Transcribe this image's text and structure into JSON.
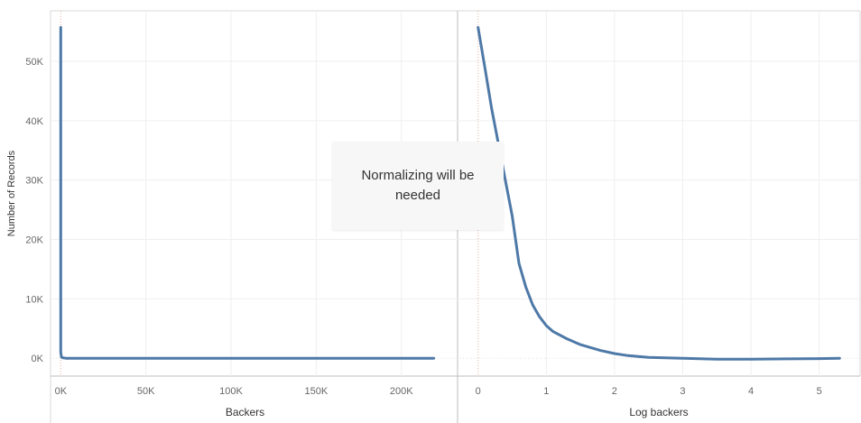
{
  "chart_data": [
    {
      "type": "line",
      "xlabel": "Backers",
      "ylabel": "Number of Records",
      "x_tick_labels": [
        "0K",
        "50K",
        "100K",
        "150K",
        "200K"
      ],
      "x_ticks": [
        0,
        50000,
        100000,
        150000,
        200000
      ],
      "xlim": [
        -6000,
        233000
      ],
      "y_tick_labels": [
        "0K",
        "10K",
        "20K",
        "30K",
        "40K",
        "50K"
      ],
      "y_ticks": [
        0,
        10000,
        20000,
        30000,
        40000,
        50000
      ],
      "ylim": [
        -3000,
        58500
      ],
      "grid": true,
      "series": [
        {
          "color": "#4e79a7",
          "x": [
            0,
            0,
            400,
            1000,
            3000,
            10000,
            50000,
            100000,
            150000,
            219000
          ],
          "y": [
            55700,
            1000,
            200,
            100,
            0,
            0,
            0,
            0,
            0,
            0
          ]
        }
      ]
    },
    {
      "type": "line",
      "xlabel": "Log backers",
      "ylabel": "Number of Records",
      "x_tick_labels": [
        "0",
        "1",
        "2",
        "3",
        "4",
        "5"
      ],
      "x_ticks": [
        0,
        1,
        2,
        3,
        4,
        5
      ],
      "xlim": [
        -0.3,
        5.6
      ],
      "y_tick_labels": [
        "0K",
        "10K",
        "20K",
        "30K",
        "40K",
        "50K"
      ],
      "y_ticks": [
        0,
        10000,
        20000,
        30000,
        40000,
        50000
      ],
      "ylim": [
        -3000,
        58500
      ],
      "grid": true,
      "series": [
        {
          "color": "#4e79a7",
          "x": [
            0,
            0.1,
            0.2,
            0.3,
            0.4,
            0.5,
            0.6,
            0.7,
            0.8,
            0.9,
            1.0,
            1.1,
            1.3,
            1.5,
            1.8,
            2.0,
            2.2,
            2.5,
            3.0,
            3.5,
            4.0,
            4.5,
            5.0,
            5.3
          ],
          "y": [
            55700,
            49000,
            42000,
            36000,
            30000,
            24000,
            16000,
            12000,
            9000,
            7000,
            5500,
            4500,
            3300,
            2300,
            1300,
            800,
            450,
            150,
            0,
            -150,
            -150,
            -100,
            -50,
            0
          ]
        }
      ]
    }
  ],
  "annotation": {
    "text": "Normalizing will be needed"
  }
}
